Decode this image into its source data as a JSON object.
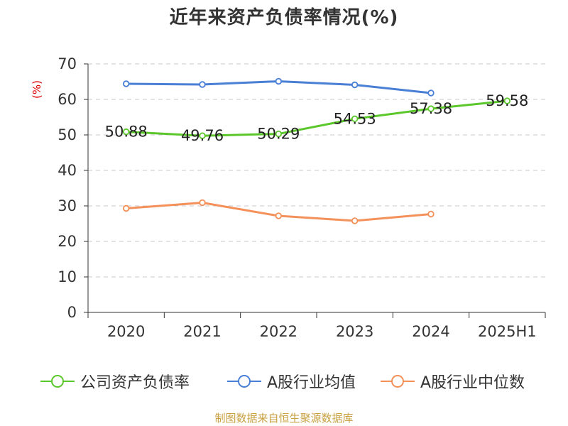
{
  "title": "近年来资产负债率情况(%)",
  "unit": "(%)",
  "source": "制图数据来自恒生聚源数据库",
  "chart_data": {
    "type": "line",
    "title": "近年来资产负债率情况(%)",
    "ylabel": "(%)",
    "xlabel": "",
    "categories": [
      "2020",
      "2021",
      "2022",
      "2023",
      "2024",
      "2025H1"
    ],
    "y_ticks": [
      0,
      10,
      20,
      30,
      40,
      50,
      60,
      70
    ],
    "ylim": [
      0,
      70
    ],
    "grid": "horizontal dashed",
    "legend_position": "bottom",
    "series": [
      {
        "name": "公司资产负债率",
        "color": "#5cc72b",
        "values": [
          50.88,
          49.76,
          50.29,
          54.53,
          57.38,
          59.58
        ],
        "labels": [
          "50.88",
          "49.76",
          "50.29",
          "54.53",
          "57.38",
          "59.58"
        ]
      },
      {
        "name": "A股行业均值",
        "color": "#4a7fd6",
        "values": [
          64.4,
          64.2,
          65.1,
          64.1,
          61.8,
          null
        ]
      },
      {
        "name": "A股行业中位数",
        "color": "#f4915a",
        "values": [
          29.3,
          30.9,
          27.2,
          25.8,
          27.7,
          null
        ]
      }
    ]
  }
}
